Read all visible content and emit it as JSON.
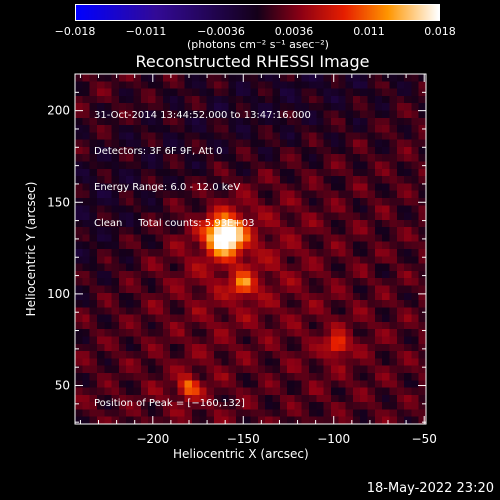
{
  "colorbar": {
    "ticks": [
      "-0.018",
      "-0.011",
      "-0.0036",
      "0.0036",
      "0.011",
      "0.018"
    ],
    "tick_values": [
      -0.018,
      -0.011,
      -0.0036,
      0.0036,
      0.011,
      0.018
    ],
    "unit_label": "(photons cm⁻² s⁻¹ asec⁻²)",
    "range": [
      -0.018,
      0.018
    ]
  },
  "chart_data": {
    "type": "heatmap",
    "title": "Reconstructed RHESSI Image",
    "xlabel": "Heliocentric X (arcsec)",
    "ylabel": "Heliocentric Y (arcsec)",
    "xlim": [
      -243,
      -49
    ],
    "ylim": [
      29,
      220
    ],
    "x_ticks": [
      -200,
      -150,
      -100,
      -50
    ],
    "x_tick_labels": [
      "−200",
      "−150",
      "−100",
      "−50"
    ],
    "y_ticks": [
      50,
      100,
      150,
      200
    ],
    "y_tick_labels": [
      "50",
      "100",
      "150",
      "200"
    ],
    "peak": [
      -160,
      132
    ],
    "secondary_sources": [
      [
        -98,
        72
      ],
      [
        -180,
        49
      ],
      [
        -150,
        105
      ]
    ],
    "info_lines": [
      "31-Oct-2014 13:44:52.000 to 13:47:16.000",
      "Detectors: 3F 6F 9F, Att 0",
      "Energy Range: 6.0 - 12.0 keV",
      "Clean     Total counts: 5.93E+03"
    ],
    "peak_label": "Position of Peak = [−160,132]",
    "colormap": "red-temperature (blue-purple for negative)"
  },
  "footer": {
    "timestamp": "18-May-2022 23:20"
  },
  "colors": {
    "background": "#000000",
    "text": "#ffffff"
  }
}
